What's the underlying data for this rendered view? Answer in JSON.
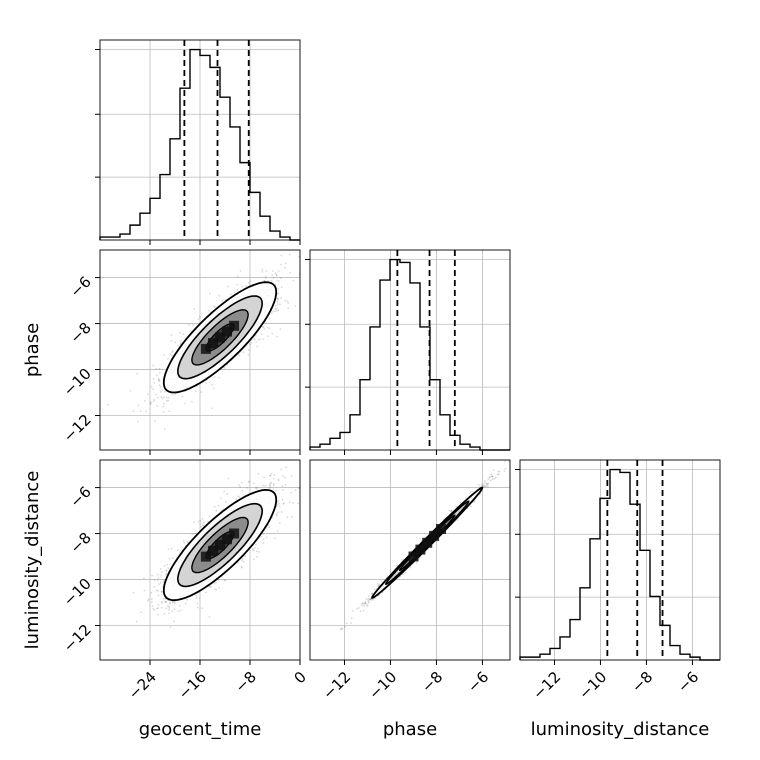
{
  "chart_data": {
    "type": "corner",
    "parameters": [
      "geocent_time",
      "phase",
      "luminosity_distance"
    ],
    "axis_labels": {
      "x": [
        "geocent_time",
        "phase",
        "luminosity_distance"
      ],
      "y": [
        "phase",
        "luminosity_distance"
      ]
    },
    "ranges": {
      "geocent_time": [
        -32,
        0
      ],
      "phase": [
        -13.5,
        -4.8
      ],
      "luminosity_distance": [
        -13.5,
        -4.8
      ]
    },
    "ticks": {
      "geocent_time": [
        -24,
        -16,
        -8,
        0
      ],
      "phase": [
        -12,
        -10,
        -8,
        -6
      ],
      "luminosity_distance": [
        -12,
        -10,
        -8,
        -6
      ]
    },
    "grid": true,
    "histogram_bins": 20,
    "quantiles": {
      "geocent_time": [
        -18.5,
        -13.2,
        -8.2
      ],
      "phase": [
        -9.7,
        -8.3,
        -7.2
      ],
      "luminosity_distance": [
        -9.7,
        -8.4,
        -7.3
      ]
    },
    "histograms": {
      "geocent_time": [
        1,
        1,
        2,
        5,
        9,
        14,
        22,
        34,
        51,
        64,
        62,
        58,
        48,
        38,
        26,
        16,
        8,
        3,
        1,
        0
      ],
      "phase": [
        1,
        2,
        4,
        6,
        12,
        24,
        42,
        58,
        65,
        64,
        57,
        42,
        24,
        12,
        5,
        2,
        1,
        0,
        0,
        0
      ],
      "luminosity_distance": [
        1,
        1,
        2,
        4,
        8,
        14,
        25,
        42,
        56,
        66,
        65,
        54,
        38,
        22,
        12,
        5,
        2,
        1,
        0,
        0
      ]
    },
    "joint_distributions": [
      {
        "x": "geocent_time",
        "y": "phase",
        "mean": [
          -12.8,
          -8.6
        ],
        "std": [
          4.5,
          1.2
        ],
        "correlation": 0.82
      },
      {
        "x": "geocent_time",
        "y": "luminosity_distance",
        "mean": [
          -12.8,
          -8.5
        ],
        "std": [
          4.5,
          1.2
        ],
        "correlation": 0.82
      },
      {
        "x": "phase",
        "y": "luminosity_distance",
        "mean": [
          -8.4,
          -8.4
        ],
        "std": [
          1.2,
          1.2
        ],
        "correlation": 0.995
      }
    ],
    "colors": {
      "points": "#555555",
      "lines": "#000000",
      "grid": "#bbbbbb"
    }
  }
}
